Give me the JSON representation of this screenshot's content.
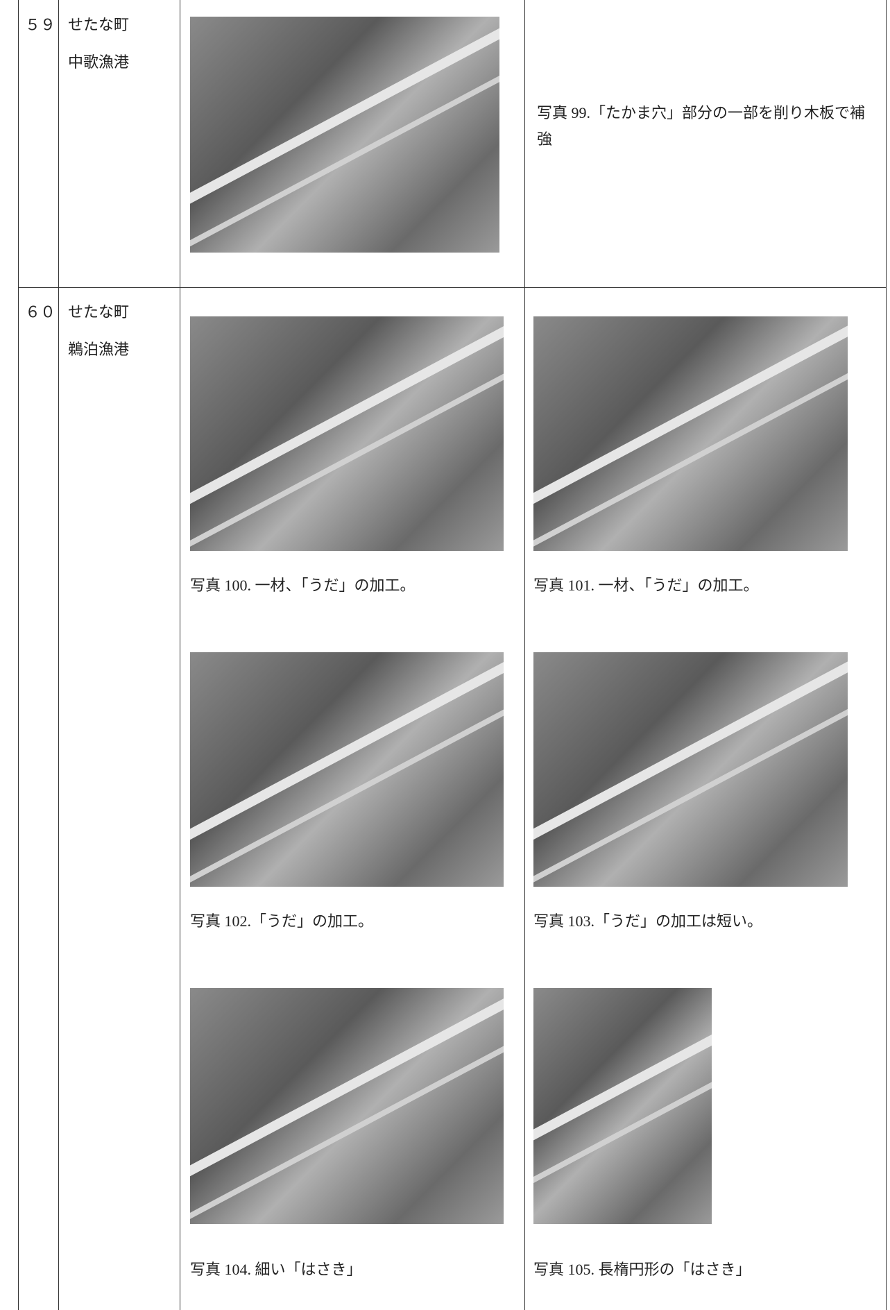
{
  "table": {
    "rows": [
      {
        "no": "５９",
        "place": [
          "せたな町",
          "中歌漁港"
        ],
        "note": "写真 99.「たかま穴」部分の一部を削り木板で補強"
      },
      {
        "no": "６０",
        "place": [
          "せたな町",
          "鵜泊漁港"
        ],
        "captions": [
          "写真 100.  一材、「うだ」の加工。",
          "写真 101.  一材、「うだ」の加工。",
          "写真 102.「うだ」の加工。",
          "写真 103.「うだ」の加工は短い。",
          "写真 104.  細い「はさき」",
          "写真 105.  長楕円形の「はさき」"
        ]
      }
    ]
  }
}
